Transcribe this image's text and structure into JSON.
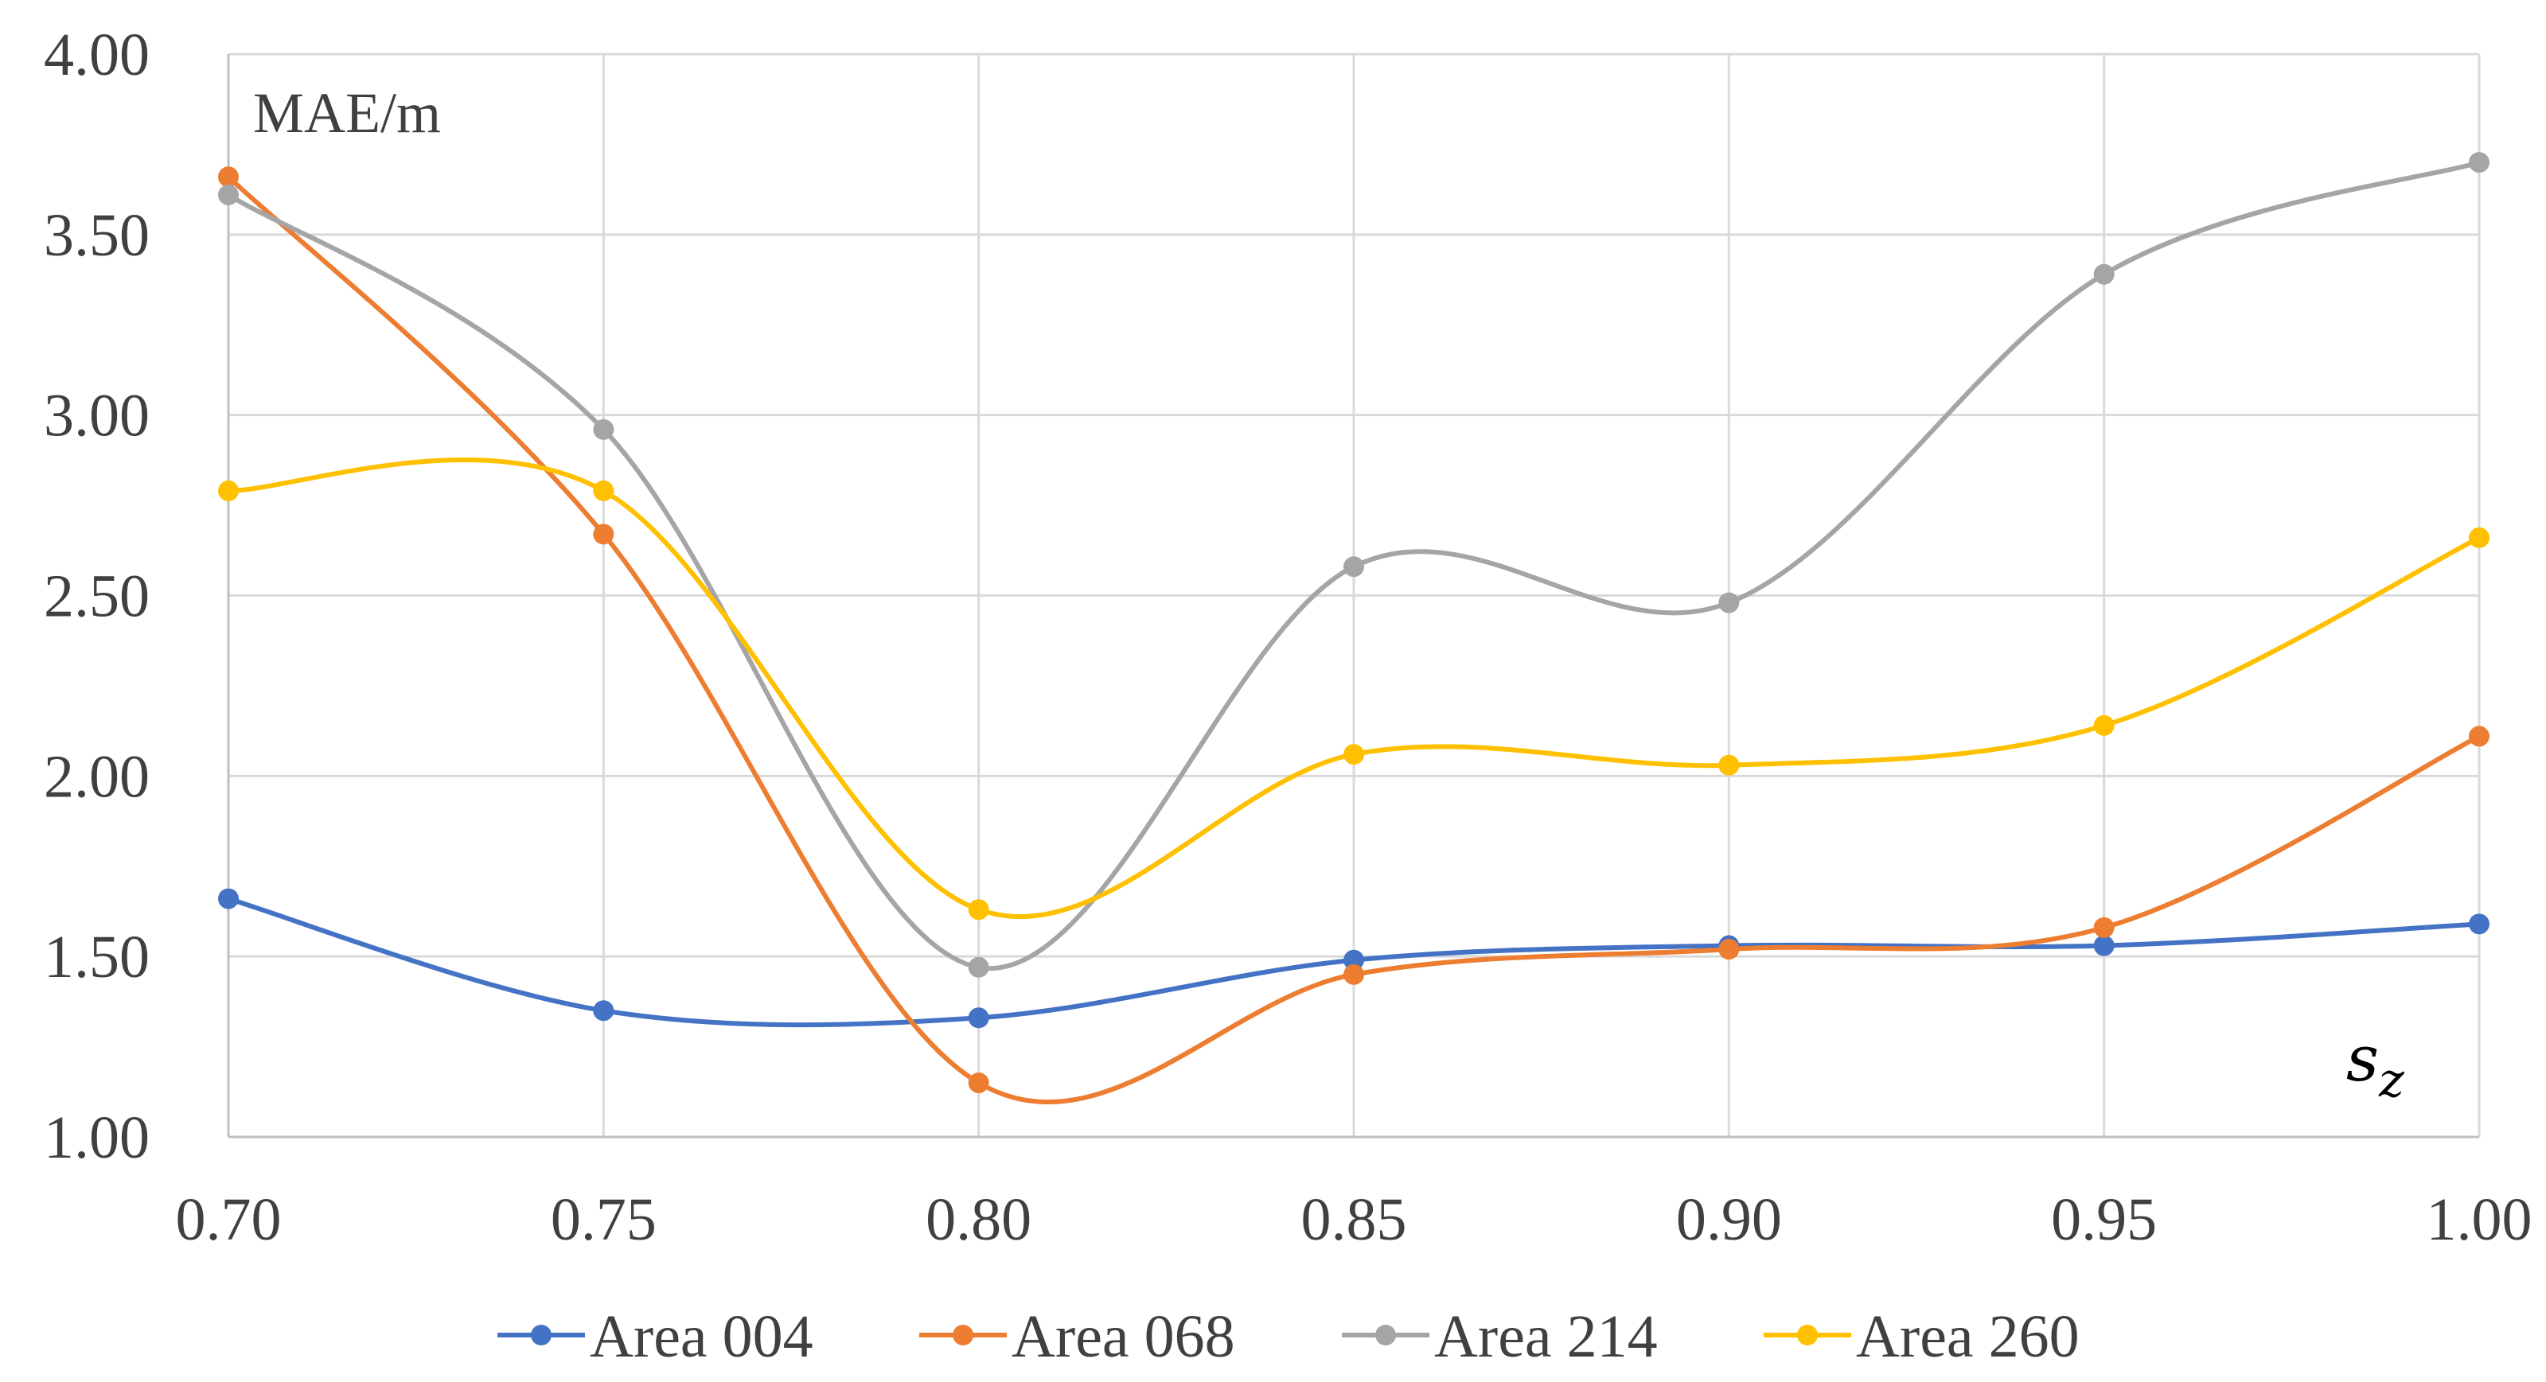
{
  "chart_data": {
    "type": "line",
    "title": "",
    "xlabel": "s",
    "xlabel_subscript": "z",
    "ylabel": "MAE/m",
    "x": [
      0.7,
      0.75,
      0.8,
      0.85,
      0.9,
      0.95,
      1.0
    ],
    "x_tick_labels": [
      "0.70",
      "0.75",
      "0.80",
      "0.85",
      "0.90",
      "0.95",
      "1.00"
    ],
    "y_tick_labels": [
      "1.00",
      "1.50",
      "2.00",
      "2.50",
      "3.00",
      "3.50",
      "4.00"
    ],
    "y_ticks": [
      1.0,
      1.5,
      2.0,
      2.5,
      3.0,
      3.5,
      4.0
    ],
    "xlim": [
      0.7,
      1.0
    ],
    "ylim": [
      1.0,
      4.0
    ],
    "grid": true,
    "smooth": true,
    "legend_position": "bottom",
    "series": [
      {
        "name": "Area 004",
        "color": "#4472C4",
        "values": [
          1.66,
          1.35,
          1.33,
          1.49,
          1.53,
          1.53,
          1.59
        ]
      },
      {
        "name": "Area 068",
        "color": "#ED7D31",
        "values": [
          3.66,
          2.67,
          1.15,
          1.45,
          1.52,
          1.58,
          2.11
        ]
      },
      {
        "name": "Area 214",
        "color": "#A5A5A5",
        "values": [
          3.61,
          2.96,
          1.47,
          2.58,
          2.48,
          3.39,
          3.7
        ]
      },
      {
        "name": "Area 260",
        "color": "#FFC000",
        "values": [
          2.79,
          2.79,
          1.63,
          2.06,
          2.03,
          2.14,
          2.66
        ]
      }
    ]
  }
}
